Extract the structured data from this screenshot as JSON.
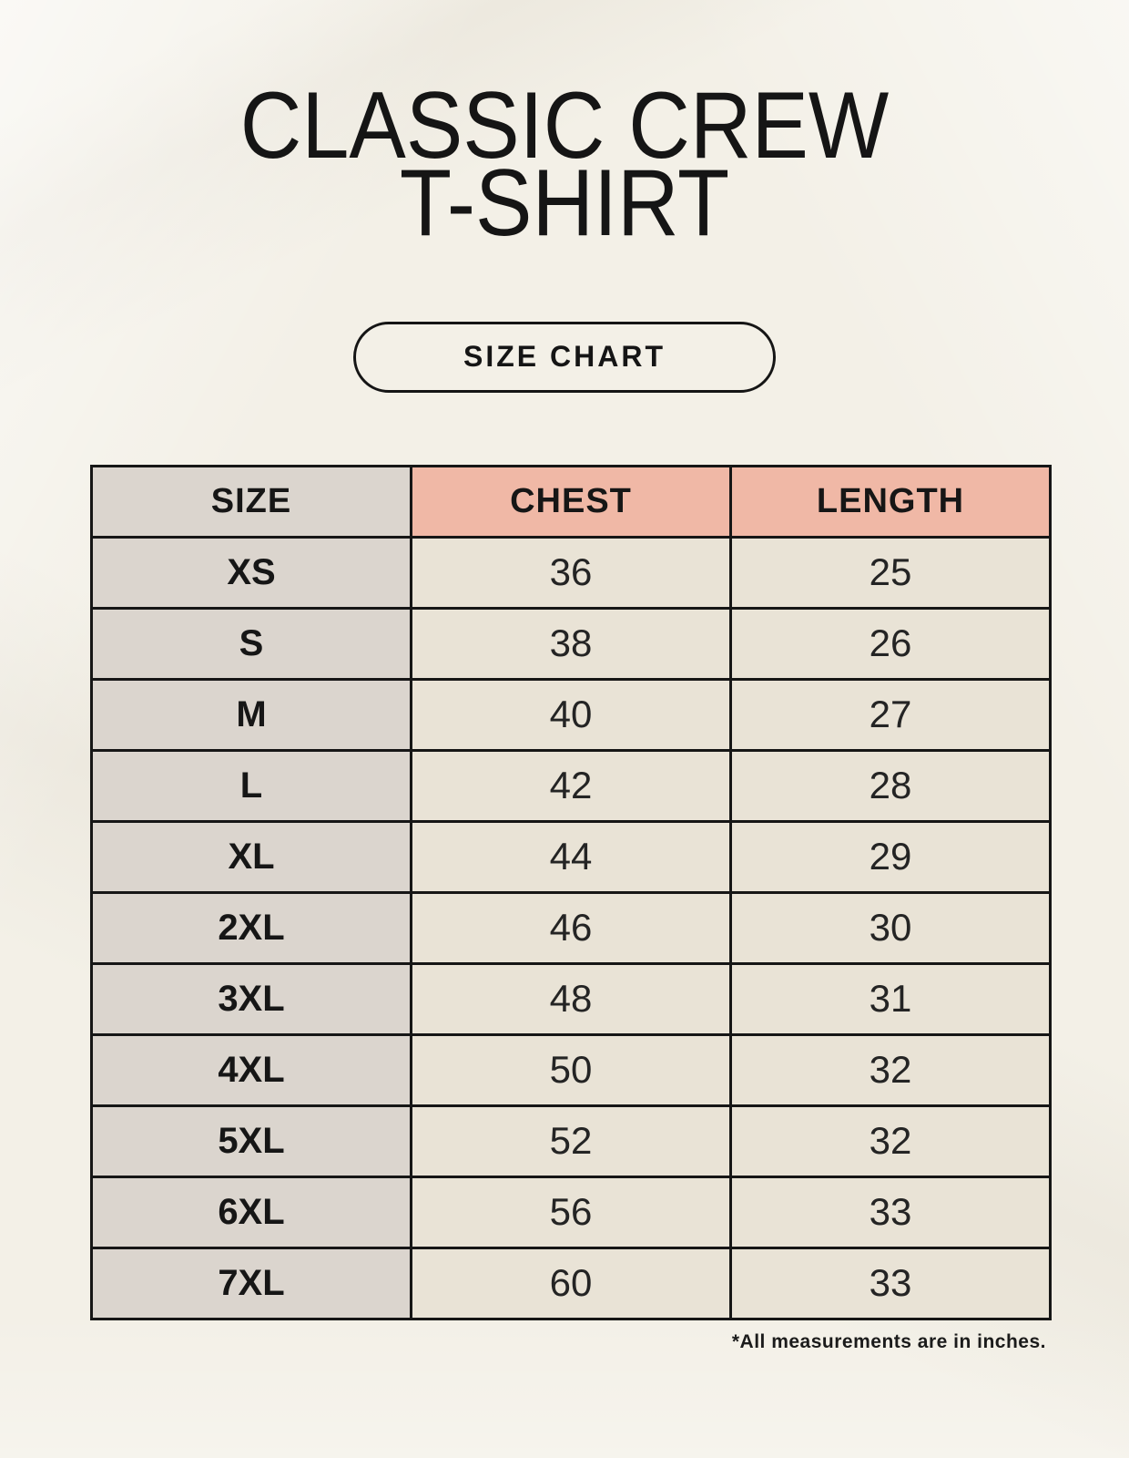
{
  "header": {
    "title_line1": "CLASSIC CREW",
    "title_line2": "T-SHIRT",
    "badge_label": "SIZE CHART"
  },
  "chart_data": {
    "type": "table",
    "title": "CLASSIC CREW T-SHIRT",
    "columns": [
      "SIZE",
      "CHEST",
      "LENGTH"
    ],
    "rows": [
      [
        "XS",
        "36",
        "25"
      ],
      [
        "S",
        "38",
        "26"
      ],
      [
        "M",
        "40",
        "27"
      ],
      [
        "L",
        "42",
        "28"
      ],
      [
        "XL",
        "44",
        "29"
      ],
      [
        "2XL",
        "46",
        "30"
      ],
      [
        "3XL",
        "48",
        "31"
      ],
      [
        "4XL",
        "50",
        "32"
      ],
      [
        "5XL",
        "52",
        "32"
      ],
      [
        "6XL",
        "56",
        "33"
      ],
      [
        "7XL",
        "60",
        "33"
      ]
    ],
    "units_note": "*All measurements are in inches."
  },
  "footnote": "*All measurements are in inches.",
  "colors": {
    "background": "#f3f0e7",
    "header_accent": "#f0b8a6",
    "size_column": "#dbd5ce",
    "cell": "#e9e3d6",
    "border": "#161616",
    "text": "#1b1b1b"
  }
}
